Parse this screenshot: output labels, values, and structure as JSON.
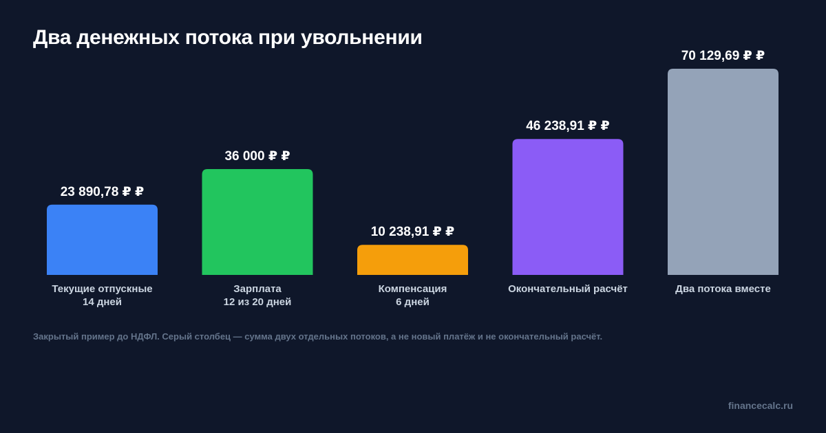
{
  "chart_data": {
    "type": "bar",
    "title": "Два денежных потока при увольнении",
    "categories": [
      {
        "line1": "Текущие отпускные",
        "line2": "14 дней"
      },
      {
        "line1": "Зарплата",
        "line2": "12 из 20 дней"
      },
      {
        "line1": "Компенсация",
        "line2": "6 дней"
      },
      {
        "line1": "Окончательный расчёт",
        "line2": ""
      },
      {
        "line1": "Два потока вместе",
        "line2": ""
      }
    ],
    "values": [
      23890.78,
      36000,
      10238.91,
      46238.91,
      70129.69
    ],
    "value_labels": [
      "23 890,78 ₽ ₽",
      "36 000 ₽ ₽",
      "10 238,91 ₽ ₽",
      "46 238,91 ₽ ₽",
      "70 129,69 ₽ ₽"
    ],
    "colors": [
      "#3b82f6",
      "#22c55e",
      "#f59e0b",
      "#8b5cf6",
      "#94a3b8"
    ],
    "ylim": [
      0,
      70129.69
    ],
    "grid": false,
    "legend": "none",
    "note": "Закрытый пример до НДФЛ. Серый столбец — сумма двух отдельных потоков, а не новый платёж и не окончательный расчёт."
  },
  "footer": "financecalc.ru"
}
